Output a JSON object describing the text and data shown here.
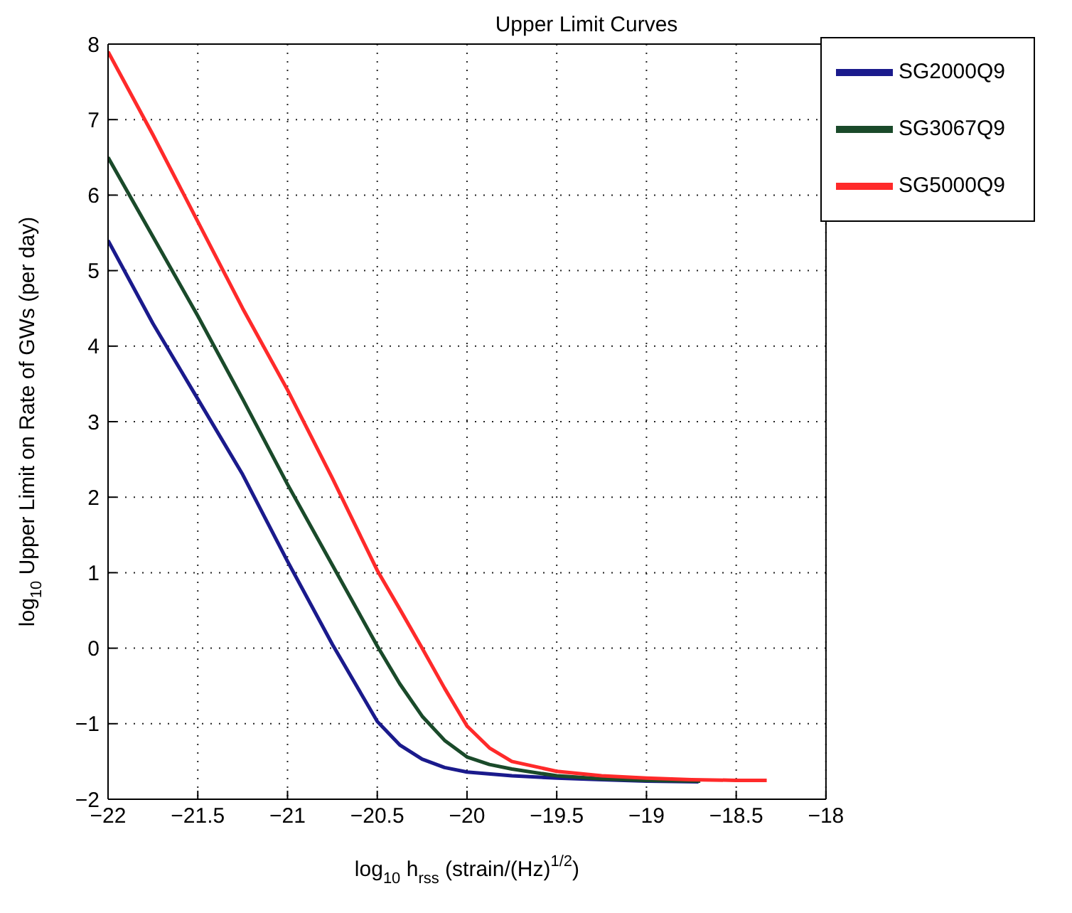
{
  "chart_data": {
    "type": "line",
    "title": "Upper Limit Curves",
    "xlabel": "log$_{10}$ h$_{rss}$ (strain/(Hz)$^{1/2}$)",
    "ylabel": "log$_{10}$ Upper Limit on Rate of GWs (per day)",
    "xlim": [
      -22,
      -18
    ],
    "xticks": [
      -22,
      -21.5,
      -21,
      -20.5,
      -20,
      -19.5,
      -19,
      -18.5,
      -18
    ],
    "ylim": [
      -2,
      8
    ],
    "yticks": [
      -2,
      -1,
      0,
      1,
      2,
      3,
      4,
      5,
      6,
      7,
      8
    ],
    "grid": true,
    "legend": "top right",
    "marker": "none",
    "line_style": "solid",
    "series": [
      {
        "name": "SG2000Q9",
        "color": "#1a1a8c",
        "x": [
          -22,
          -21.75,
          -21.5,
          -21.25,
          -21,
          -20.75,
          -20.5,
          -20.375,
          -20.25,
          -20.125,
          -20,
          -19.75,
          -19.5,
          -19.25,
          -19,
          -18.71
        ],
        "values": [
          5.4,
          4.3,
          3.3,
          2.3,
          1.15,
          0.05,
          -0.97,
          -1.28,
          -1.47,
          -1.58,
          -1.64,
          -1.69,
          -1.72,
          -1.74,
          -1.76,
          -1.77
        ]
      },
      {
        "name": "SG3067Q9",
        "color": "#1a4a2a",
        "x": [
          -22,
          -21.75,
          -21.5,
          -21.25,
          -21,
          -20.75,
          -20.5,
          -20.375,
          -20.25,
          -20.125,
          -20,
          -19.875,
          -19.75,
          -19.5,
          -19.25,
          -19,
          -18.7
        ],
        "values": [
          6.5,
          5.45,
          4.4,
          3.3,
          2.17,
          1.1,
          0.03,
          -0.47,
          -0.9,
          -1.22,
          -1.44,
          -1.54,
          -1.6,
          -1.69,
          -1.73,
          -1.75,
          -1.76
        ]
      },
      {
        "name": "SG5000Q9",
        "color": "#ff2a2a",
        "x": [
          -22,
          -21.75,
          -21.5,
          -21.25,
          -21,
          -20.75,
          -20.5,
          -20.375,
          -20.25,
          -20.125,
          -20,
          -19.875,
          -19.75,
          -19.5,
          -19.25,
          -19,
          -18.75,
          -18.5,
          -18.33
        ],
        "values": [
          7.9,
          6.8,
          5.65,
          4.5,
          3.42,
          2.25,
          1.03,
          0.52,
          0,
          -0.53,
          -1.03,
          -1.32,
          -1.5,
          -1.63,
          -1.69,
          -1.72,
          -1.74,
          -1.75,
          -1.75
        ]
      }
    ]
  }
}
